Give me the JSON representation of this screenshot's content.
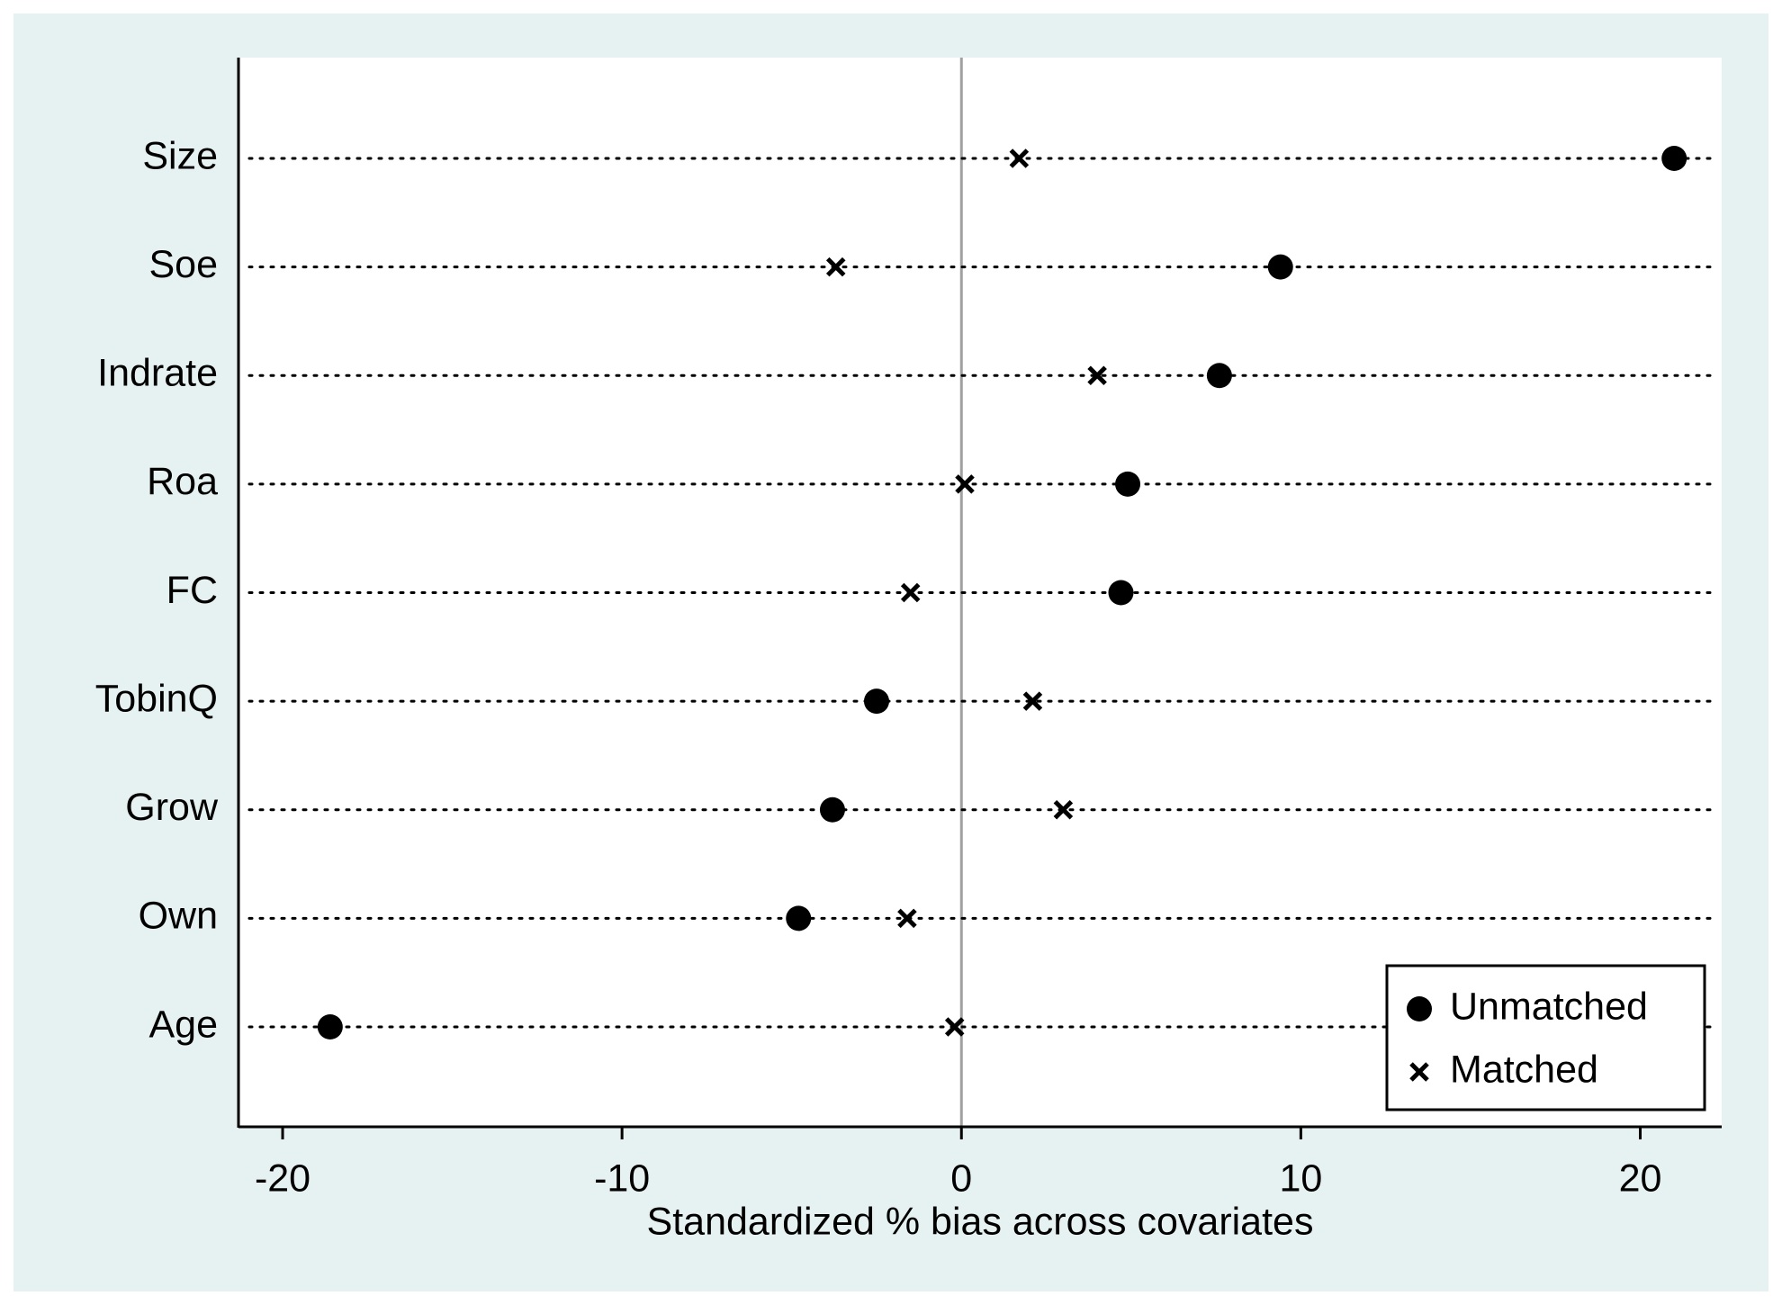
{
  "chart_data": {
    "type": "dot",
    "xlabel": "Standardized % bias across covariates",
    "categories": [
      "Size",
      "Soe",
      "Indrate",
      "Roa",
      "FC",
      "TobinQ",
      "Grow",
      "Own",
      "Age"
    ],
    "series": [
      {
        "name": "Unmatched",
        "color": "#000000",
        "marker": "circle",
        "values": [
          21.0,
          9.4,
          7.6,
          4.9,
          4.7,
          -2.5,
          -3.8,
          -4.8,
          -18.6
        ]
      },
      {
        "name": "Matched",
        "color": "#000000",
        "marker": "x",
        "values": [
          1.7,
          -3.7,
          4.0,
          0.1,
          -1.5,
          2.1,
          3.0,
          -1.6,
          -0.2
        ]
      }
    ],
    "xlim": [
      -21.3,
      22.4
    ],
    "xticks": [
      -20,
      -10,
      0,
      10,
      20
    ],
    "xline": 0,
    "legend": "lower right"
  }
}
